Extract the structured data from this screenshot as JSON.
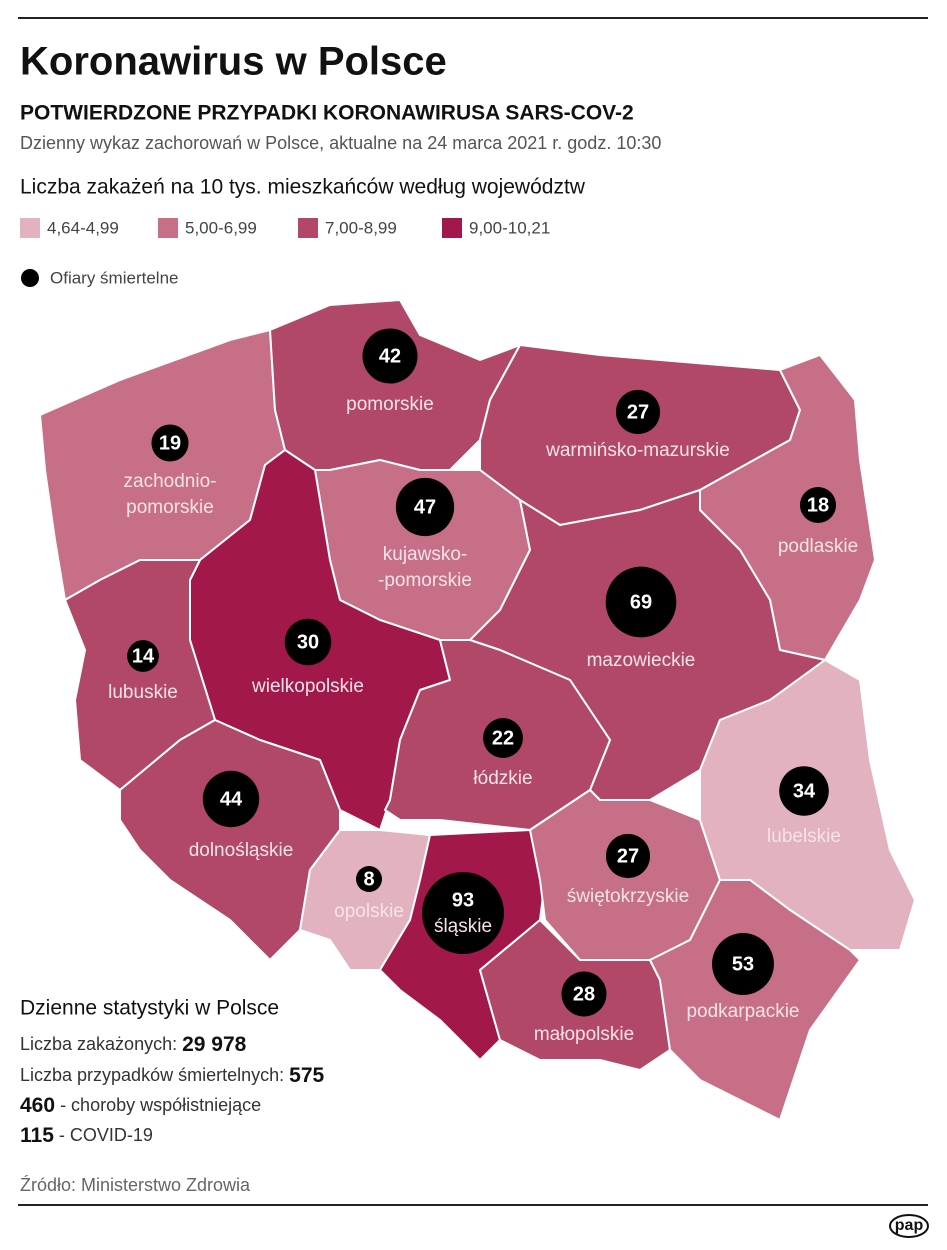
{
  "header": {
    "title": "Koronawirus w Polsce",
    "subtitle": "POTWIERDZONE PRZYPADKI KORONAWIRUSA SARS-COV-2",
    "note": "Dzienny wykaz zachorowań w Polsce, aktualne na 24 marca 2021 r. godz. 10:30"
  },
  "legend": {
    "title": "Liczba zakażeń na 10 tys. mieszkańców według województw",
    "classes": [
      {
        "label": "4,64-4,99",
        "color": "#e2b3be"
      },
      {
        "label": "5,00-6,99",
        "color": "#c76f87"
      },
      {
        "label": "7,00-8,99",
        "color": "#b14868"
      },
      {
        "label": "9,00-10,21",
        "color": "#a3184b"
      }
    ],
    "deaths_label": "Ofiary śmiertelne"
  },
  "regions": [
    {
      "name": [
        "zachodnio-",
        "pomorskie"
      ],
      "deaths": 19,
      "color": "#c76f87"
    },
    {
      "name": [
        "pomorskie"
      ],
      "deaths": 42,
      "color": "#b14868"
    },
    {
      "name": [
        "warmińsko-mazurskie"
      ],
      "deaths": 27,
      "color": "#b14868"
    },
    {
      "name": [
        "podlaskie"
      ],
      "deaths": 18,
      "color": "#c76f87"
    },
    {
      "name": [
        "kujawsko-",
        "-pomorskie"
      ],
      "deaths": 47,
      "color": "#c76f87"
    },
    {
      "name": [
        "wielkopolskie"
      ],
      "deaths": 30,
      "color": "#a3184b"
    },
    {
      "name": [
        "lubuskie"
      ],
      "deaths": 14,
      "color": "#b14868"
    },
    {
      "name": [
        "mazowieckie"
      ],
      "deaths": 69,
      "color": "#b14868"
    },
    {
      "name": [
        "łódzkie"
      ],
      "deaths": 22,
      "color": "#b14868"
    },
    {
      "name": [
        "dolnośląskie"
      ],
      "deaths": 44,
      "color": "#b14868"
    },
    {
      "name": [
        "opolskie"
      ],
      "deaths": 8,
      "color": "#e2b3be"
    },
    {
      "name": [
        "śląskie"
      ],
      "deaths": 93,
      "color": "#a3184b"
    },
    {
      "name": [
        "świętokrzyskie"
      ],
      "deaths": 27,
      "color": "#c76f87"
    },
    {
      "name": [
        "lubelskie"
      ],
      "deaths": 34,
      "color": "#e2b3be"
    },
    {
      "name": [
        "małopolskie"
      ],
      "deaths": 28,
      "color": "#b14868"
    },
    {
      "name": [
        "podkarpackie"
      ],
      "deaths": 53,
      "color": "#c76f87"
    }
  ],
  "stats": {
    "title": "Dzienne statystyki w Polsce",
    "infected": {
      "label": "Liczba zakażonych:",
      "value": "29 978"
    },
    "deaths": {
      "label": "Liczba przypadków śmiertelnych:",
      "value": 575
    },
    "comorbid": {
      "value": 460,
      "label": "- choroby współistniejące"
    },
    "covid": {
      "value": 115,
      "label": "- COVID-19"
    }
  },
  "source": "Źródło: Ministerstwo Zdrowia",
  "logo": "pap"
}
